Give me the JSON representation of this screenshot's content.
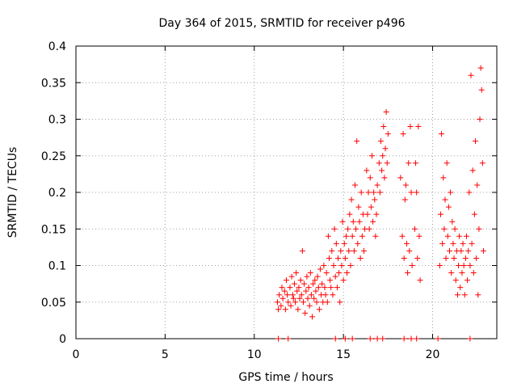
{
  "chart_data": {
    "type": "scatter",
    "title": "Day 364 of 2015, SRMTID for receiver p496",
    "xlabel": "GPS time / hours",
    "ylabel": "SRMTID / TECUs",
    "xlim": [
      0,
      23.6
    ],
    "ylim": [
      0,
      0.4
    ],
    "grid": true,
    "x_ticks": [
      0,
      5,
      10,
      15,
      20
    ],
    "x_tick_labels": [
      "0",
      "5",
      "10",
      "15",
      "20"
    ],
    "y_ticks": [
      0,
      0.05,
      0.1,
      0.15,
      0.2,
      0.25,
      0.3,
      0.35,
      0.4
    ],
    "y_tick_labels": [
      "0",
      "0.05",
      "0.1",
      "0.15",
      "0.2",
      "0.25",
      "0.3",
      "0.35",
      "0.4"
    ],
    "marker": "+",
    "color": "#ff0000",
    "series": [
      {
        "name": "SRMTID",
        "points": [
          [
            11.3,
            0.05
          ],
          [
            11.35,
            0.04
          ],
          [
            11.4,
            0.06
          ],
          [
            11.5,
            0.045
          ],
          [
            11.55,
            0.07
          ],
          [
            11.6,
            0.055
          ],
          [
            11.7,
            0.065
          ],
          [
            11.75,
            0.04
          ],
          [
            11.8,
            0.08
          ],
          [
            11.85,
            0.06
          ],
          [
            11.9,
            0.05
          ],
          [
            12.0,
            0.07
          ],
          [
            12.05,
            0.045
          ],
          [
            12.1,
            0.085
          ],
          [
            12.15,
            0.06
          ],
          [
            12.2,
            0.055
          ],
          [
            12.25,
            0.075
          ],
          [
            12.3,
            0.05
          ],
          [
            12.35,
            0.09
          ],
          [
            12.4,
            0.065
          ],
          [
            12.45,
            0.04
          ],
          [
            12.5,
            0.07
          ],
          [
            12.55,
            0.055
          ],
          [
            12.6,
            0.08
          ],
          [
            12.65,
            0.06
          ],
          [
            12.7,
            0.12
          ],
          [
            12.75,
            0.05
          ],
          [
            12.8,
            0.075
          ],
          [
            12.85,
            0.035
          ],
          [
            12.9,
            0.065
          ],
          [
            12.95,
            0.085
          ],
          [
            13.0,
            0.055
          ],
          [
            13.05,
            0.07
          ],
          [
            13.1,
            0.045
          ],
          [
            13.15,
            0.09
          ],
          [
            13.2,
            0.06
          ],
          [
            13.25,
            0.03
          ],
          [
            13.3,
            0.075
          ],
          [
            13.35,
            0.055
          ],
          [
            13.4,
            0.08
          ],
          [
            13.45,
            0.065
          ],
          [
            13.5,
            0.05
          ],
          [
            13.55,
            0.085
          ],
          [
            13.6,
            0.07
          ],
          [
            13.65,
            0.04
          ],
          [
            13.7,
            0.095
          ],
          [
            13.75,
            0.06
          ],
          [
            13.8,
            0.075
          ],
          [
            13.85,
            0.05
          ],
          [
            13.9,
            0.1
          ],
          [
            13.95,
            0.07
          ],
          [
            14.0,
            0.06
          ],
          [
            14.05,
            0.09
          ],
          [
            14.1,
            0.05
          ],
          [
            14.15,
            0.14
          ],
          [
            14.2,
            0.11
          ],
          [
            14.25,
            0.08
          ],
          [
            14.3,
            0.07
          ],
          [
            14.35,
            0.12
          ],
          [
            14.4,
            0.06
          ],
          [
            14.45,
            0.1
          ],
          [
            14.5,
            0.15
          ],
          [
            14.55,
            0.085
          ],
          [
            14.6,
            0.13
          ],
          [
            14.65,
            0.07
          ],
          [
            14.7,
            0.11
          ],
          [
            14.75,
            0.09
          ],
          [
            14.8,
            0.05
          ],
          [
            14.85,
            0.12
          ],
          [
            14.9,
            0.1
          ],
          [
            14.95,
            0.16
          ],
          [
            15.0,
            0.08
          ],
          [
            15.05,
            0.13
          ],
          [
            15.1,
            0.11
          ],
          [
            15.15,
            0.14
          ],
          [
            15.2,
            0.09
          ],
          [
            15.25,
            0.15
          ],
          [
            15.3,
            0.12
          ],
          [
            15.35,
            0.17
          ],
          [
            15.4,
            0.1
          ],
          [
            15.45,
            0.19
          ],
          [
            15.5,
            0.14
          ],
          [
            15.55,
            0.16
          ],
          [
            15.6,
            0.12
          ],
          [
            15.65,
            0.21
          ],
          [
            15.7,
            0.15
          ],
          [
            15.75,
            0.27
          ],
          [
            15.8,
            0.13
          ],
          [
            15.85,
            0.18
          ],
          [
            15.9,
            0.16
          ],
          [
            15.95,
            0.11
          ],
          [
            16.0,
            0.2
          ],
          [
            16.05,
            0.14
          ],
          [
            16.1,
            0.17
          ],
          [
            16.15,
            0.12
          ],
          [
            16.2,
            0.15
          ],
          [
            16.3,
            0.23
          ],
          [
            16.35,
            0.17
          ],
          [
            16.4,
            0.2
          ],
          [
            16.45,
            0.15
          ],
          [
            16.5,
            0.22
          ],
          [
            16.55,
            0.18
          ],
          [
            16.6,
            0.25
          ],
          [
            16.65,
            0.16
          ],
          [
            16.7,
            0.2
          ],
          [
            16.75,
            0.19
          ],
          [
            16.8,
            0.14
          ],
          [
            16.85,
            0.17
          ],
          [
            16.9,
            0.21
          ],
          [
            17.0,
            0.24
          ],
          [
            17.05,
            0.2
          ],
          [
            17.1,
            0.27
          ],
          [
            17.15,
            0.23
          ],
          [
            17.2,
            0.25
          ],
          [
            17.25,
            0.29
          ],
          [
            17.3,
            0.22
          ],
          [
            17.35,
            0.26
          ],
          [
            17.4,
            0.31
          ],
          [
            17.45,
            0.24
          ],
          [
            17.5,
            0.28
          ],
          [
            18.2,
            0.22
          ],
          [
            18.3,
            0.14
          ],
          [
            18.35,
            0.28
          ],
          [
            18.4,
            0.11
          ],
          [
            18.45,
            0.19
          ],
          [
            18.5,
            0.21
          ],
          [
            18.55,
            0.13
          ],
          [
            18.6,
            0.09
          ],
          [
            18.65,
            0.24
          ],
          [
            18.7,
            0.12
          ],
          [
            18.75,
            0.29
          ],
          [
            18.8,
            0.2
          ],
          [
            18.85,
            0.1
          ],
          [
            19.0,
            0.15
          ],
          [
            19.05,
            0.24
          ],
          [
            19.1,
            0.2
          ],
          [
            19.15,
            0.11
          ],
          [
            19.2,
            0.29
          ],
          [
            19.25,
            0.14
          ],
          [
            19.3,
            0.08
          ],
          [
            20.4,
            0.1
          ],
          [
            20.45,
            0.17
          ],
          [
            20.5,
            0.28
          ],
          [
            20.55,
            0.13
          ],
          [
            20.6,
            0.22
          ],
          [
            20.65,
            0.15
          ],
          [
            20.7,
            0.19
          ],
          [
            20.75,
            0.11
          ],
          [
            20.8,
            0.24
          ],
          [
            20.85,
            0.14
          ],
          [
            20.9,
            0.18
          ],
          [
            20.95,
            0.12
          ],
          [
            21.0,
            0.2
          ],
          [
            21.05,
            0.09
          ],
          [
            21.1,
            0.16
          ],
          [
            21.15,
            0.13
          ],
          [
            21.2,
            0.11
          ],
          [
            21.25,
            0.15
          ],
          [
            21.3,
            0.08
          ],
          [
            21.35,
            0.12
          ],
          [
            21.4,
            0.06
          ],
          [
            21.45,
            0.1
          ],
          [
            21.5,
            0.14
          ],
          [
            21.55,
            0.07
          ],
          [
            21.6,
            0.12
          ],
          [
            21.65,
            0.09
          ],
          [
            21.7,
            0.13
          ],
          [
            21.75,
            0.1
          ],
          [
            21.8,
            0.06
          ],
          [
            21.85,
            0.11
          ],
          [
            21.9,
            0.14
          ],
          [
            21.95,
            0.08
          ],
          [
            22.0,
            0.12
          ],
          [
            22.05,
            0.2
          ],
          [
            22.1,
            0.1
          ],
          [
            22.15,
            0.36
          ],
          [
            22.2,
            0.13
          ],
          [
            22.25,
            0.23
          ],
          [
            22.3,
            0.09
          ],
          [
            22.35,
            0.17
          ],
          [
            22.4,
            0.27
          ],
          [
            22.45,
            0.11
          ],
          [
            22.5,
            0.21
          ],
          [
            22.55,
            0.06
          ],
          [
            22.6,
            0.15
          ],
          [
            22.65,
            0.3
          ],
          [
            22.7,
            0.37
          ],
          [
            22.75,
            0.34
          ],
          [
            22.8,
            0.24
          ],
          [
            22.85,
            0.12
          ],
          [
            11.35,
            0.0
          ],
          [
            11.9,
            0.0
          ],
          [
            14.55,
            0.0
          ],
          [
            15.1,
            0.0
          ],
          [
            15.5,
            0.0
          ],
          [
            16.5,
            0.0
          ],
          [
            16.9,
            0.0
          ],
          [
            17.2,
            0.0
          ],
          [
            18.4,
            0.0
          ],
          [
            18.8,
            0.0
          ],
          [
            19.1,
            0.0
          ],
          [
            20.3,
            0.0
          ],
          [
            22.1,
            0.0
          ]
        ]
      }
    ]
  }
}
